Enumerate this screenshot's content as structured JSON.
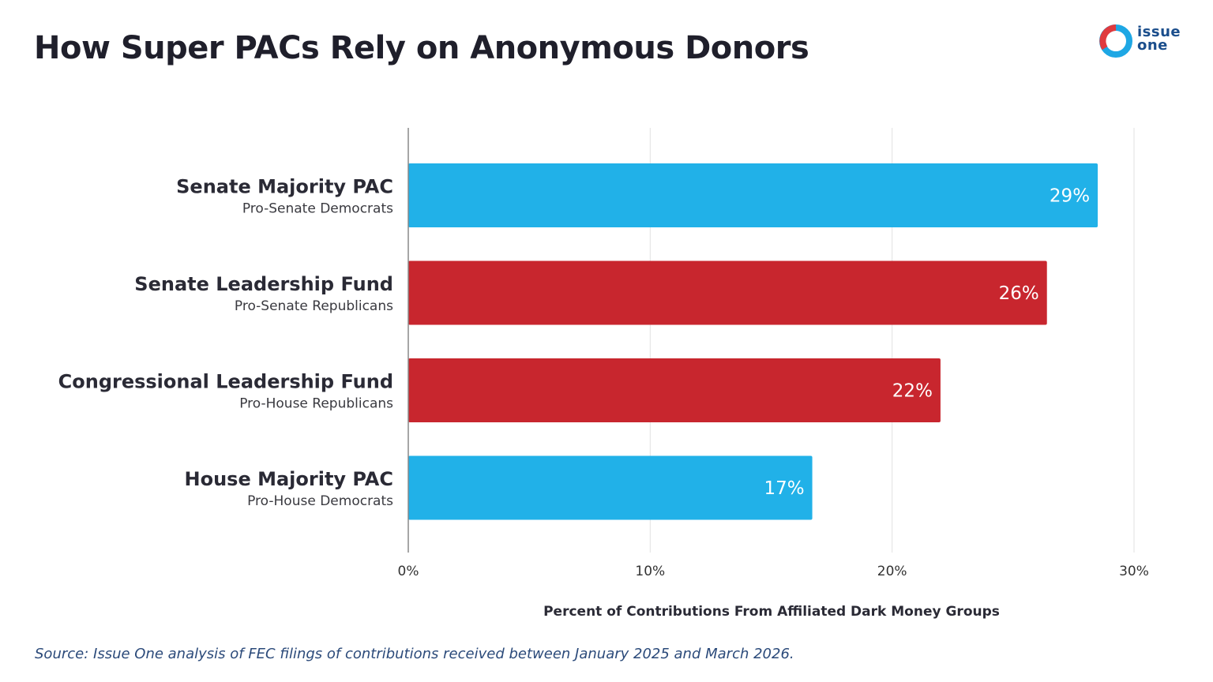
{
  "header": {
    "title": "How Super PACs Rely on Anonymous Donors"
  },
  "logo": {
    "line1": "issue",
    "line2": "one",
    "colors": {
      "ring_blue": "#1ea7e4",
      "ring_red": "#e03a3e",
      "text": "#1b4e8c"
    }
  },
  "chart_data": {
    "type": "bar",
    "orientation": "horizontal",
    "categories": [
      "Senate Majority PAC",
      "Senate Leadership Fund",
      "Congressional Leadership Fund",
      "House Majority PAC"
    ],
    "subtitles": [
      "Pro-Senate Democrats",
      "Pro-Senate Republicans",
      "Pro-House Republicans",
      "Pro-House Democrats"
    ],
    "values": [
      28.5,
      26.4,
      22,
      16.7
    ],
    "value_labels": [
      "29%",
      "26%",
      "22%",
      "17%"
    ],
    "bar_colors": [
      "#21b1e8",
      "#c8262e",
      "#c8262e",
      "#21b1e8"
    ],
    "xlabel": "Percent of Contributions From Affiliated Dark Money Groups",
    "ylabel": "",
    "xlim": [
      0,
      30
    ],
    "ticks": [
      0,
      10,
      20,
      30
    ],
    "tick_labels": [
      "0%",
      "10%",
      "20%",
      "30%"
    ],
    "grid": true
  },
  "footer": {
    "source": "Source: Issue One analysis of FEC filings of contributions received between January 2025 and March 2026."
  }
}
